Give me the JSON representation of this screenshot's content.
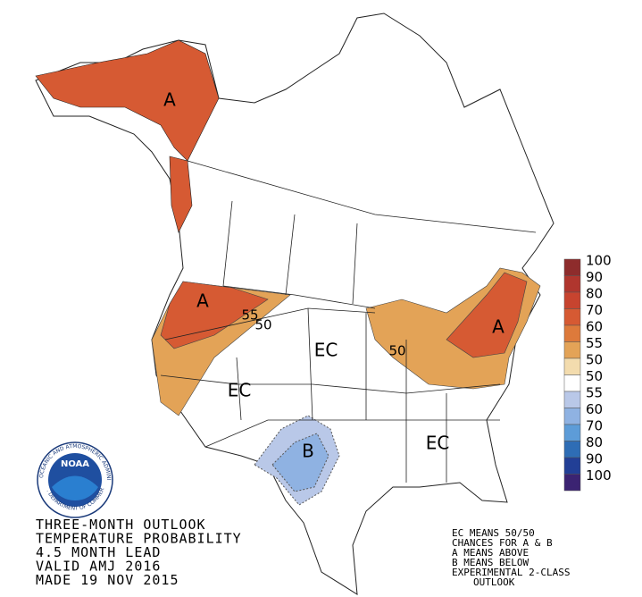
{
  "map": {
    "labels": [
      "A",
      "A",
      "A",
      "B",
      "EC",
      "EC",
      "EC",
      "55",
      "50",
      "50"
    ]
  },
  "legend": {
    "items": [
      {
        "label": 100,
        "color": "#8e2c2c"
      },
      {
        "label": 90,
        "color": "#b0362e"
      },
      {
        "label": 80,
        "color": "#c7442f"
      },
      {
        "label": 70,
        "color": "#d65a33"
      },
      {
        "label": 60,
        "color": "#dd7a3b"
      },
      {
        "label": 55,
        "color": "#e3a357"
      },
      {
        "label": 50,
        "color": "#f3dcae"
      },
      {
        "label": 50,
        "color": "#ffffff"
      },
      {
        "label": 55,
        "color": "#b9c8e8"
      },
      {
        "label": 60,
        "color": "#8fb2e2"
      },
      {
        "label": 70,
        "color": "#5d9cd8"
      },
      {
        "label": 80,
        "color": "#2e6db5"
      },
      {
        "label": 90,
        "color": "#223f96"
      },
      {
        "label": 100,
        "color": "#3b2372"
      }
    ]
  },
  "logo": {
    "text": "NOAA",
    "ring": "NATIONAL OCEANIC AND ATMOSPHERIC ADMINISTRATION",
    "ring_bottom": "U.S. DEPARTMENT OF COMMERCE"
  },
  "title": {
    "lines": [
      "THREE-MONTH OUTLOOK",
      "TEMPERATURE PROBABILITY",
      "4.5 MONTH LEAD",
      "VALID AMJ 2016",
      "MADE 19 NOV 2015"
    ]
  },
  "notes": {
    "lines": [
      "EC MEANS 50/50",
      "CHANCES FOR A & B",
      "A MEANS ABOVE",
      "B MEANS BELOW",
      "EXPERIMENTAL 2-CLASS",
      "OUTLOOK"
    ]
  }
}
